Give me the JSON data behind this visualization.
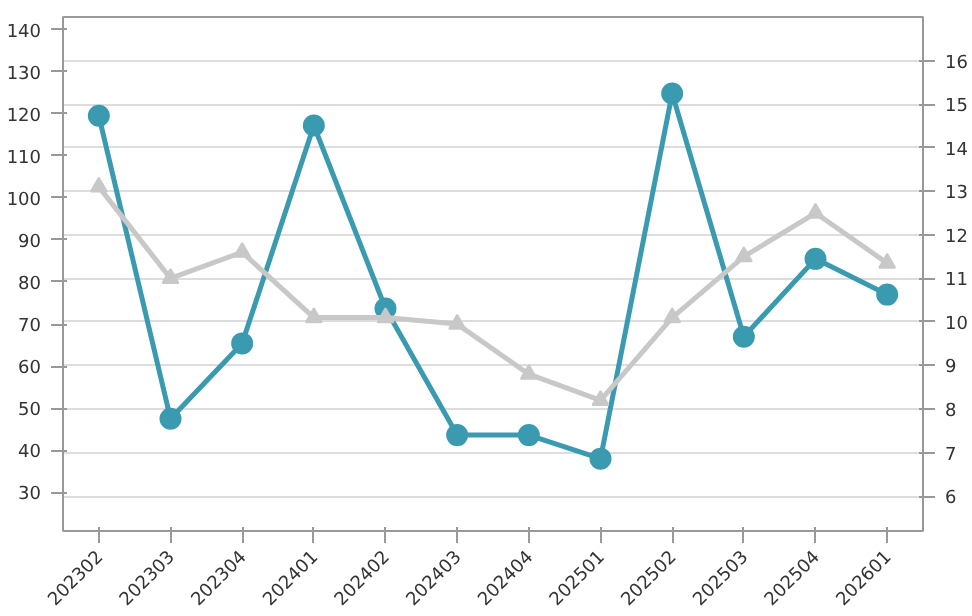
{
  "chart_data": {
    "type": "line",
    "categories": [
      "202302",
      "202303",
      "202304",
      "202401",
      "202402",
      "202403",
      "202404",
      "202501",
      "202502",
      "202503",
      "202504",
      "202601"
    ],
    "series": [
      {
        "color": "#3a9ab0",
        "marker": "circle",
        "values": [
          119.5,
          47.5,
          65.4,
          117.2,
          73.7,
          43.6,
          43.6,
          38,
          124.8,
          67,
          85.5,
          77
        ]
      },
      {
        "color": "#c8c8c8",
        "marker": "triangle",
        "axis": "y2",
        "values": [
          13.1,
          11.0,
          11.6,
          10.1,
          10.1,
          9.95,
          8.8,
          8.2,
          10.1,
          11.5,
          12.5,
          11.35
        ]
      }
    ],
    "ylim": [
      20.8,
      143
    ],
    "yticks": [
      30,
      40,
      50,
      60,
      70,
      80,
      90,
      100,
      110,
      120,
      130,
      140
    ],
    "y2lim": [
      5.2,
      17
    ],
    "y2ticks": [
      6,
      7,
      8,
      9,
      10,
      11,
      12,
      13,
      14,
      15,
      16
    ],
    "grid": "y"
  }
}
